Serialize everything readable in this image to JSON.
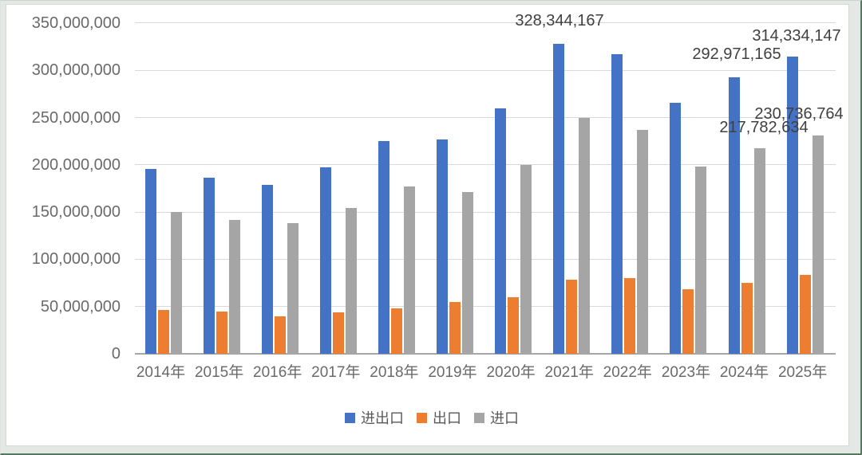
{
  "chart_data": {
    "type": "bar",
    "title": "",
    "xlabel": "",
    "ylabel": "",
    "categories": [
      "2014年",
      "2015年",
      "2016年",
      "2017年",
      "2018年",
      "2019年",
      "2020年",
      "2021年",
      "2022年",
      "2023年",
      "2024年",
      "2025年"
    ],
    "series": [
      {
        "name": "进出口",
        "color": "#4472C4",
        "values": [
          196000000,
          186500000,
          178500000,
          197500000,
          225000000,
          226500000,
          259500000,
          328344167,
          317000000,
          266000000,
          292971165,
          314334147
        ]
      },
      {
        "name": "出口",
        "color": "#ED7D31",
        "values": [
          46000000,
          45000000,
          40000000,
          43500000,
          48000000,
          55000000,
          60000000,
          78500000,
          80000000,
          68000000,
          75200000,
          83600000
        ]
      },
      {
        "name": "进口",
        "color": "#A5A5A5",
        "values": [
          150000000,
          141500000,
          138500000,
          154000000,
          177000000,
          171500000,
          199500000,
          249800000,
          237000000,
          198000000,
          217782634,
          230736764
        ]
      }
    ],
    "y_axis": {
      "min": 0,
      "max": 350000000,
      "step": 50000000,
      "tick_labels": [
        "0",
        "50,000,000",
        "100,000,000",
        "150,000,000",
        "200,000,000",
        "250,000,000",
        "300,000,000",
        "350,000,000"
      ]
    },
    "grid": "horizontal",
    "legend": {
      "position": "bottom",
      "items": [
        "进出口",
        "出口",
        "进口"
      ]
    },
    "data_labels": [
      {
        "series": "进出口",
        "category": "2021年",
        "text": "328,344,167"
      },
      {
        "series": "进出口",
        "category": "2024年",
        "text": "292,971,165"
      },
      {
        "series": "进出口",
        "category": "2025年",
        "text": "314,334,147"
      },
      {
        "series": "进口",
        "category": "2024年",
        "text": "217,782,634"
      },
      {
        "series": "进口",
        "category": "2025年",
        "text": "230,736,764"
      }
    ]
  },
  "colors": {
    "plot_background": "#ffffff",
    "frame_background": "#e4e8e4",
    "frame_edge": "#567a60",
    "gridline": "#d9d9d9",
    "axis_line": "#a6a6a6",
    "tick_text": "#6a6a6a",
    "data_label_text": "#404040",
    "series_blue": "#4472C4",
    "series_orange": "#ED7D31",
    "series_gray": "#A5A5A5"
  }
}
